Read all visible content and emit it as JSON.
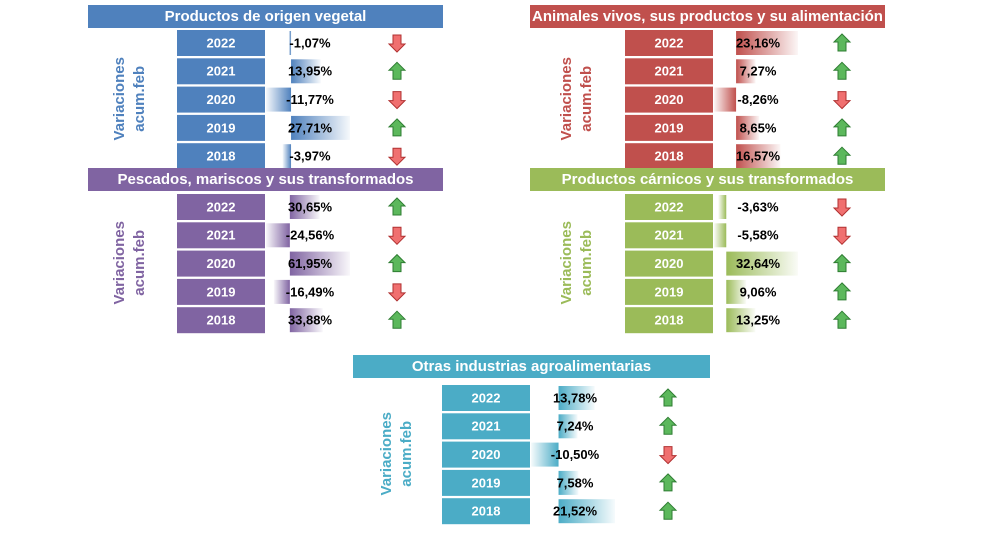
{
  "panels": [
    {
      "title": "Productos de origen vegetal",
      "color": "#4f81bd",
      "side_label": [
        "Variaciones",
        "acum.feb"
      ],
      "rows": [
        {
          "year": "2022",
          "value": -1.07,
          "label": "-1,07%"
        },
        {
          "year": "2021",
          "value": 13.95,
          "label": "13,95%"
        },
        {
          "year": "2020",
          "value": -11.77,
          "label": "-11,77%"
        },
        {
          "year": "2019",
          "value": 27.71,
          "label": "27,71%"
        },
        {
          "year": "2018",
          "value": -3.97,
          "label": "-3,97%"
        }
      ]
    },
    {
      "title": "Animales vivos, sus productos y su alimentación",
      "color": "#c0504d",
      "side_label": [
        "Variaciones",
        "acum.feb"
      ],
      "rows": [
        {
          "year": "2022",
          "value": 23.16,
          "label": "23,16%"
        },
        {
          "year": "2021",
          "value": 7.27,
          "label": "7,27%"
        },
        {
          "year": "2020",
          "value": -8.26,
          "label": "-8,26%"
        },
        {
          "year": "2019",
          "value": 8.65,
          "label": "8,65%"
        },
        {
          "year": "2018",
          "value": 16.57,
          "label": "16,57%"
        }
      ]
    },
    {
      "title": "Pescados, mariscos y sus transformados",
      "color": "#8064a2",
      "side_label": [
        "Variaciones",
        "acum.feb"
      ],
      "rows": [
        {
          "year": "2022",
          "value": 30.65,
          "label": "30,65%"
        },
        {
          "year": "2021",
          "value": -24.56,
          "label": "-24,56%"
        },
        {
          "year": "2020",
          "value": 61.95,
          "label": "61,95%"
        },
        {
          "year": "2019",
          "value": -16.49,
          "label": "-16,49%"
        },
        {
          "year": "2018",
          "value": 33.88,
          "label": "33,88%"
        }
      ]
    },
    {
      "title": "Productos cárnicos y sus transformados",
      "color": "#9bbb59",
      "side_label": [
        "Variaciones",
        "acum.feb"
      ],
      "rows": [
        {
          "year": "2022",
          "value": -3.63,
          "label": "-3,63%"
        },
        {
          "year": "2021",
          "value": -5.58,
          "label": "-5,58%"
        },
        {
          "year": "2020",
          "value": 32.64,
          "label": "32,64%"
        },
        {
          "year": "2019",
          "value": 9.06,
          "label": "9,06%"
        },
        {
          "year": "2018",
          "value": 13.25,
          "label": "13,25%"
        }
      ]
    },
    {
      "title": "Otras industrias agroalimentarias",
      "color": "#4bacc6",
      "side_label": [
        "Variaciones",
        "acum.feb"
      ],
      "rows": [
        {
          "year": "2022",
          "value": 13.78,
          "label": "13,78%"
        },
        {
          "year": "2021",
          "value": 7.24,
          "label": "7,24%"
        },
        {
          "year": "2020",
          "value": -10.5,
          "label": "-10,50%"
        },
        {
          "year": "2019",
          "value": 7.58,
          "label": "7,58%"
        },
        {
          "year": "2018",
          "value": 21.52,
          "label": "21,52%"
        }
      ]
    }
  ]
}
